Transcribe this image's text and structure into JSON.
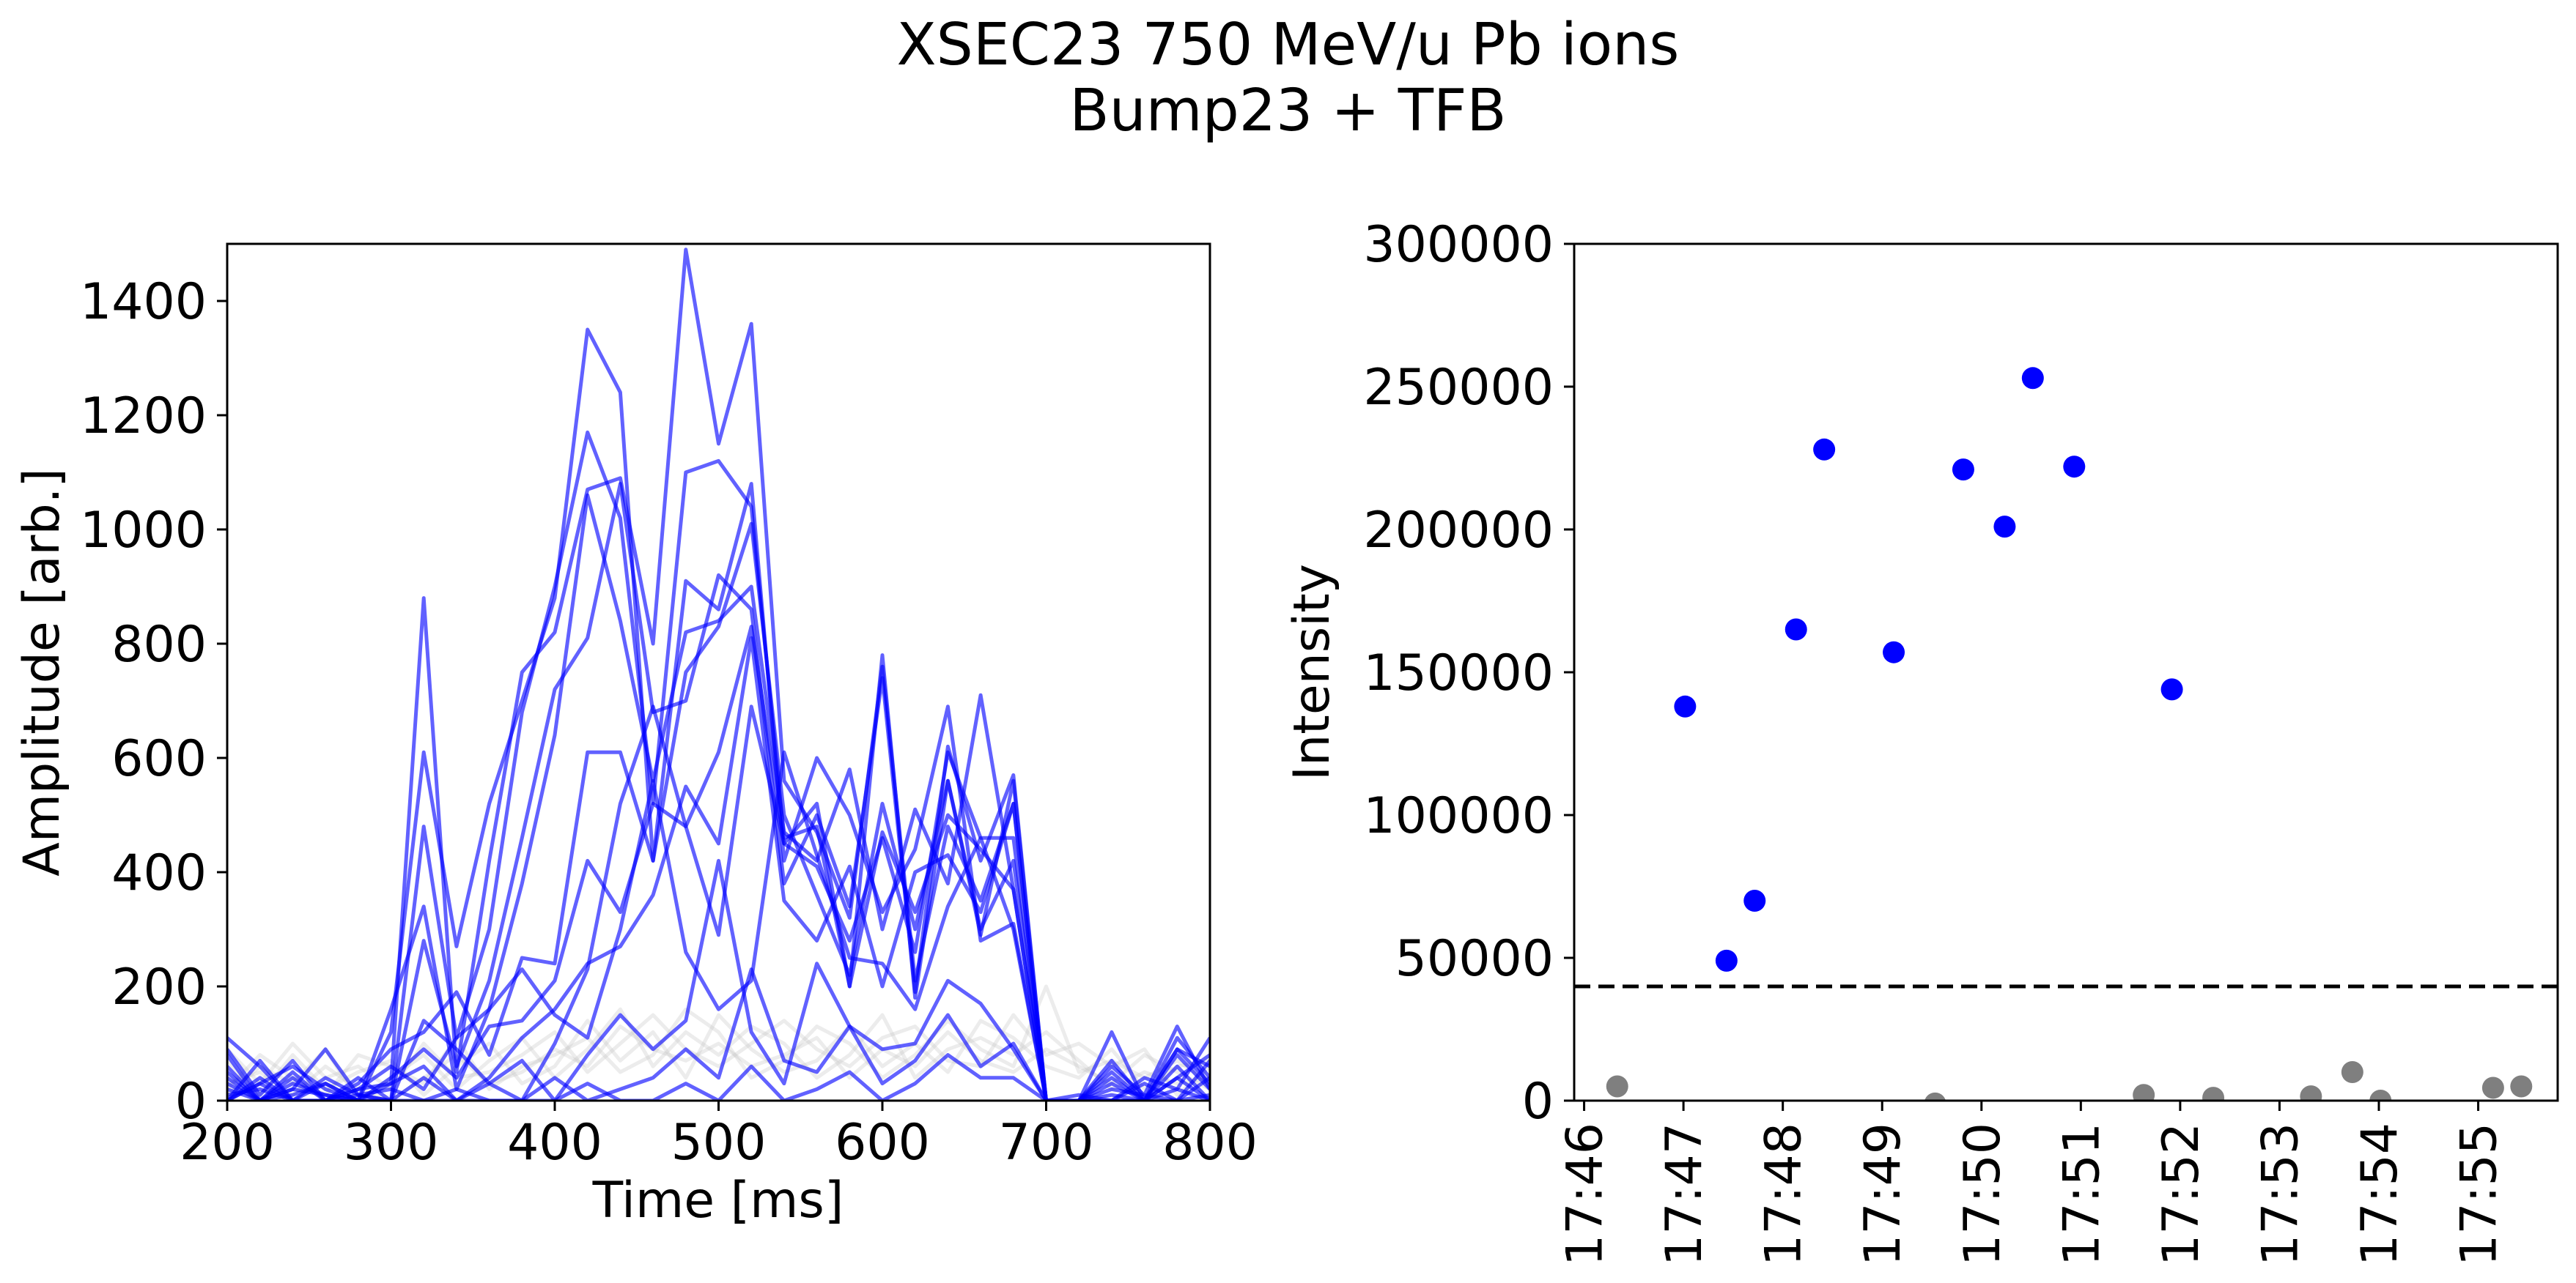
{
  "figure": {
    "title_line1": "XSEC23 750 MeV/u Pb ions",
    "title_line2": "Bump23 + TFB"
  },
  "chart_data": [
    {
      "type": "line",
      "xlabel": "Time [ms]",
      "ylabel": "Amplitude [arb.]",
      "xlim": [
        200,
        800
      ],
      "ylim": [
        0,
        1500
      ],
      "xticks": [
        200,
        300,
        400,
        500,
        600,
        700,
        800
      ],
      "yticks": [
        0,
        200,
        400,
        600,
        800,
        1000,
        1200,
        1400
      ],
      "grid": false,
      "colors": {
        "highlight": "#0000ff",
        "background": "#c8c8c8"
      },
      "x": [
        200,
        220,
        240,
        260,
        280,
        300,
        320,
        340,
        360,
        380,
        400,
        420,
        440,
        460,
        480,
        500,
        520,
        540,
        560,
        580,
        600,
        620,
        640,
        660,
        680,
        700,
        720,
        740,
        760,
        780,
        800
      ],
      "series": [
        {
          "values": [
            90,
            10,
            70,
            0,
            20,
            30,
            880,
            50,
            420,
            750,
            820,
            1070,
            1090,
            800,
            1490,
            1150,
            1360,
            560,
            470,
            320,
            760,
            210,
            480,
            350,
            520,
            0,
            0,
            40,
            0,
            90,
            60
          ]
        },
        {
          "values": [
            40,
            0,
            30,
            10,
            0,
            120,
            610,
            270,
            520,
            700,
            880,
            1350,
            1240,
            420,
            910,
            860,
            1080,
            420,
            600,
            500,
            330,
            440,
            690,
            280,
            310,
            0,
            0,
            60,
            10,
            130,
            20
          ]
        },
        {
          "values": [
            110,
            60,
            0,
            0,
            40,
            0,
            480,
            110,
            300,
            680,
            900,
            1170,
            1020,
            520,
            1100,
            1120,
            1040,
            460,
            480,
            200,
            780,
            180,
            560,
            290,
            560,
            0,
            0,
            0,
            40,
            20,
            110
          ]
        },
        {
          "values": [
            0,
            30,
            60,
            20,
            0,
            160,
            340,
            20,
            160,
            380,
            640,
            1060,
            840,
            560,
            820,
            840,
            900,
            470,
            420,
            580,
            300,
            510,
            380,
            710,
            370,
            0,
            0,
            120,
            0,
            40,
            80
          ]
        },
        {
          "values": [
            60,
            0,
            20,
            90,
            10,
            0,
            280,
            60,
            210,
            460,
            720,
            810,
            1080,
            680,
            700,
            920,
            860,
            380,
            500,
            340,
            740,
            190,
            620,
            420,
            570,
            0,
            0,
            30,
            0,
            110,
            40
          ]
        },
        {
          "values": [
            20,
            0,
            50,
            0,
            30,
            90,
            120,
            190,
            80,
            250,
            240,
            610,
            610,
            420,
            750,
            830,
            1010,
            500,
            360,
            220,
            520,
            300,
            560,
            300,
            420,
            0,
            0,
            0,
            0,
            60,
            0
          ]
        },
        {
          "values": [
            0,
            70,
            0,
            30,
            0,
            40,
            90,
            40,
            130,
            140,
            210,
            420,
            330,
            520,
            480,
            610,
            830,
            450,
            410,
            280,
            460,
            260,
            610,
            460,
            460,
            0,
            0,
            70,
            0,
            90,
            30
          ]
        },
        {
          "values": [
            80,
            0,
            20,
            10,
            0,
            30,
            60,
            0,
            40,
            110,
            160,
            240,
            270,
            360,
            550,
            450,
            810,
            350,
            280,
            410,
            200,
            400,
            430,
            330,
            520,
            0,
            0,
            0,
            30,
            0,
            70
          ]
        },
        {
          "values": [
            0,
            30,
            0,
            40,
            10,
            0,
            140,
            90,
            30,
            0,
            100,
            230,
            520,
            690,
            480,
            290,
            690,
            450,
            520,
            200,
            470,
            330,
            500,
            440,
            370,
            0,
            0,
            50,
            0,
            40,
            0
          ]
        },
        {
          "values": [
            30,
            0,
            40,
            0,
            20,
            60,
            20,
            110,
            160,
            230,
            150,
            110,
            300,
            560,
            260,
            160,
            210,
            610,
            430,
            250,
            240,
            160,
            340,
            460,
            300,
            0,
            10,
            0,
            0,
            80,
            20
          ]
        },
        {
          "values": [
            0,
            40,
            0,
            0,
            10,
            20,
            0,
            0,
            30,
            70,
            0,
            80,
            150,
            90,
            140,
            420,
            120,
            30,
            240,
            130,
            90,
            100,
            210,
            170,
            90,
            0,
            0,
            20,
            10,
            0,
            40
          ]
        },
        {
          "values": [
            50,
            0,
            10,
            30,
            0,
            0,
            40,
            0,
            0,
            0,
            40,
            0,
            20,
            40,
            90,
            40,
            230,
            70,
            50,
            130,
            30,
            70,
            150,
            60,
            100,
            0,
            0,
            0,
            0,
            20,
            0
          ]
        },
        {
          "values": [
            10,
            20,
            0,
            0,
            0,
            0,
            0,
            20,
            0,
            0,
            0,
            30,
            0,
            0,
            30,
            0,
            60,
            0,
            20,
            50,
            0,
            30,
            80,
            40,
            40,
            0,
            0,
            10,
            0,
            0,
            10
          ]
        }
      ],
      "background_series": [
        {
          "values": [
            30,
            50,
            10,
            60,
            20,
            0,
            40,
            80,
            30,
            50,
            90,
            60,
            130,
            90,
            70,
            100,
            60,
            80,
            110,
            40,
            90,
            60,
            120,
            70,
            50,
            90,
            60,
            30,
            80,
            50,
            20
          ]
        },
        {
          "values": [
            70,
            10,
            80,
            20,
            50,
            70,
            10,
            60,
            100,
            30,
            60,
            140,
            70,
            120,
            40,
            150,
            90,
            50,
            70,
            130,
            60,
            100,
            50,
            140,
            110,
            60,
            40,
            90,
            20,
            60,
            70
          ]
        },
        {
          "values": [
            10,
            60,
            30,
            90,
            0,
            40,
            80,
            20,
            70,
            110,
            40,
            90,
            160,
            60,
            120,
            80,
            130,
            100,
            40,
            80,
            150,
            40,
            90,
            110,
            80,
            120,
            70,
            20,
            50,
            30,
            40
          ]
        },
        {
          "values": [
            90,
            30,
            100,
            40,
            60,
            20,
            100,
            40,
            50,
            80,
            120,
            50,
            100,
            150,
            90,
            60,
            100,
            140,
            90,
            60,
            110,
            130,
            70,
            60,
            150,
            80,
            100,
            60,
            90,
            10,
            60
          ]
        },
        {
          "values": [
            20,
            80,
            40,
            10,
            80,
            60,
            30,
            110,
            20,
            60,
            80,
            110,
            50,
            80,
            160,
            120,
            40,
            70,
            130,
            100,
            40,
            80,
            140,
            90,
            60,
            200,
            50,
            70,
            40,
            70,
            30
          ]
        }
      ]
    },
    {
      "type": "scatter",
      "xlabel": "",
      "ylabel": "Intensity",
      "xlim": [
        "17:45:54",
        "17:55:48"
      ],
      "ylim": [
        0,
        300000
      ],
      "xticks": [
        "17:46",
        "17:47",
        "17:48",
        "17:49",
        "17:50",
        "17:51",
        "17:52",
        "17:53",
        "17:54",
        "17:55"
      ],
      "yticks": [
        0,
        50000,
        100000,
        150000,
        200000,
        250000,
        300000
      ],
      "grid": false,
      "threshold": 40000,
      "colors": {
        "above": "#0000ff",
        "below": "#7f7f7f"
      },
      "points_above": [
        {
          "x": "17:47:01",
          "y": 138000
        },
        {
          "x": "17:47:26",
          "y": 49000
        },
        {
          "x": "17:47:43",
          "y": 70000
        },
        {
          "x": "17:48:08",
          "y": 165000
        },
        {
          "x": "17:48:25",
          "y": 228000
        },
        {
          "x": "17:49:07",
          "y": 157000
        },
        {
          "x": "17:49:49",
          "y": 221000
        },
        {
          "x": "17:50:14",
          "y": 201000
        },
        {
          "x": "17:50:31",
          "y": 253000
        },
        {
          "x": "17:50:56",
          "y": 222000
        },
        {
          "x": "17:51:55",
          "y": 144000
        }
      ],
      "points_below": [
        {
          "x": "17:46:20",
          "y": 5000
        },
        {
          "x": "17:49:32",
          "y": -1000
        },
        {
          "x": "17:51:38",
          "y": 2000
        },
        {
          "x": "17:52:20",
          "y": 1000
        },
        {
          "x": "17:53:19",
          "y": 1500
        },
        {
          "x": "17:53:44",
          "y": 10000
        },
        {
          "x": "17:54:01",
          "y": 0
        },
        {
          "x": "17:55:09",
          "y": 4500
        },
        {
          "x": "17:55:26",
          "y": 5000
        }
      ]
    }
  ]
}
